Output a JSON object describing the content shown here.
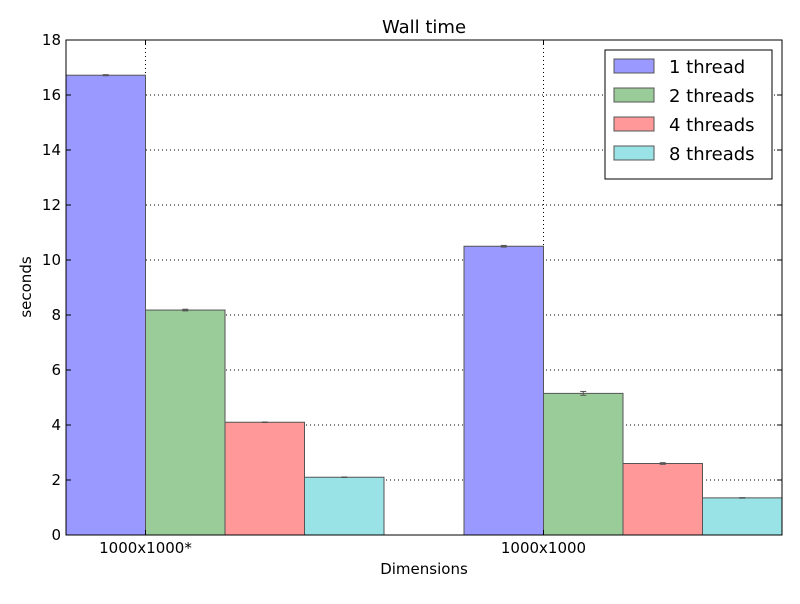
{
  "chart_data": {
    "type": "bar",
    "title": "Wall time",
    "xlabel": "Dimensions",
    "ylabel": "seconds",
    "ylim": [
      0,
      18
    ],
    "yticks": [
      0,
      2,
      4,
      6,
      8,
      10,
      12,
      14,
      16,
      18
    ],
    "categories": [
      "1000x1000*",
      "1000x1000"
    ],
    "grid": true,
    "legend_position": "top-right",
    "series": [
      {
        "name": "1 thread",
        "color": "#9999ff",
        "values": [
          16.72,
          10.5
        ],
        "errors": [
          0.02,
          0.03
        ]
      },
      {
        "name": "2 threads",
        "color": "#99cc99",
        "values": [
          8.18,
          5.15
        ],
        "errors": [
          0.03,
          0.07
        ]
      },
      {
        "name": "4 threads",
        "color": "#ff9999",
        "values": [
          4.1,
          2.6
        ],
        "errors": [
          0.01,
          0.03
        ]
      },
      {
        "name": "8 threads",
        "color": "#99e2e6",
        "values": [
          2.1,
          1.35
        ],
        "errors": [
          0.01,
          0.01
        ]
      }
    ]
  }
}
